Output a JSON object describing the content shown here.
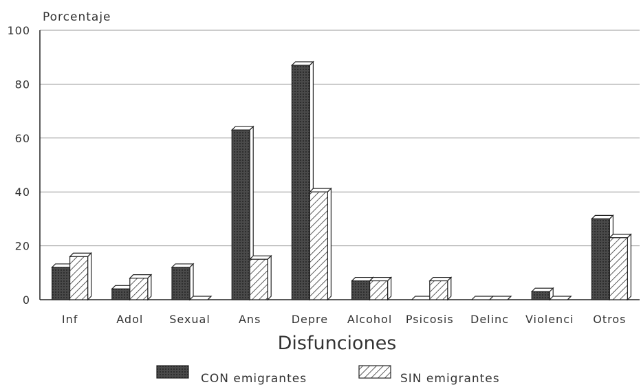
{
  "chart_data": {
    "type": "bar",
    "ylabel": "Porcentaje",
    "xlabel": "Disfunciones",
    "ylim": [
      0,
      100
    ],
    "yticks": [
      "0",
      "20",
      "40",
      "60",
      "80",
      "100"
    ],
    "grid": true,
    "legend_position": "bottom",
    "categories": [
      "Inf",
      "Adol",
      "Sexual",
      "Ans",
      "Depre",
      "Alcohol",
      "Psicosis",
      "Delinc",
      "Violenci",
      "Otros"
    ],
    "series": [
      {
        "name": "CON emigrantes",
        "pattern": "solid-dark",
        "color": "#3d3d3d",
        "values": [
          12,
          4,
          12,
          63,
          87,
          7,
          0,
          0,
          3,
          30
        ]
      },
      {
        "name": "SIN emigrantes",
        "pattern": "hatched",
        "color": "#ffffff",
        "values": [
          16,
          8,
          0,
          15,
          40,
          7,
          7,
          0,
          0,
          23
        ]
      }
    ]
  }
}
